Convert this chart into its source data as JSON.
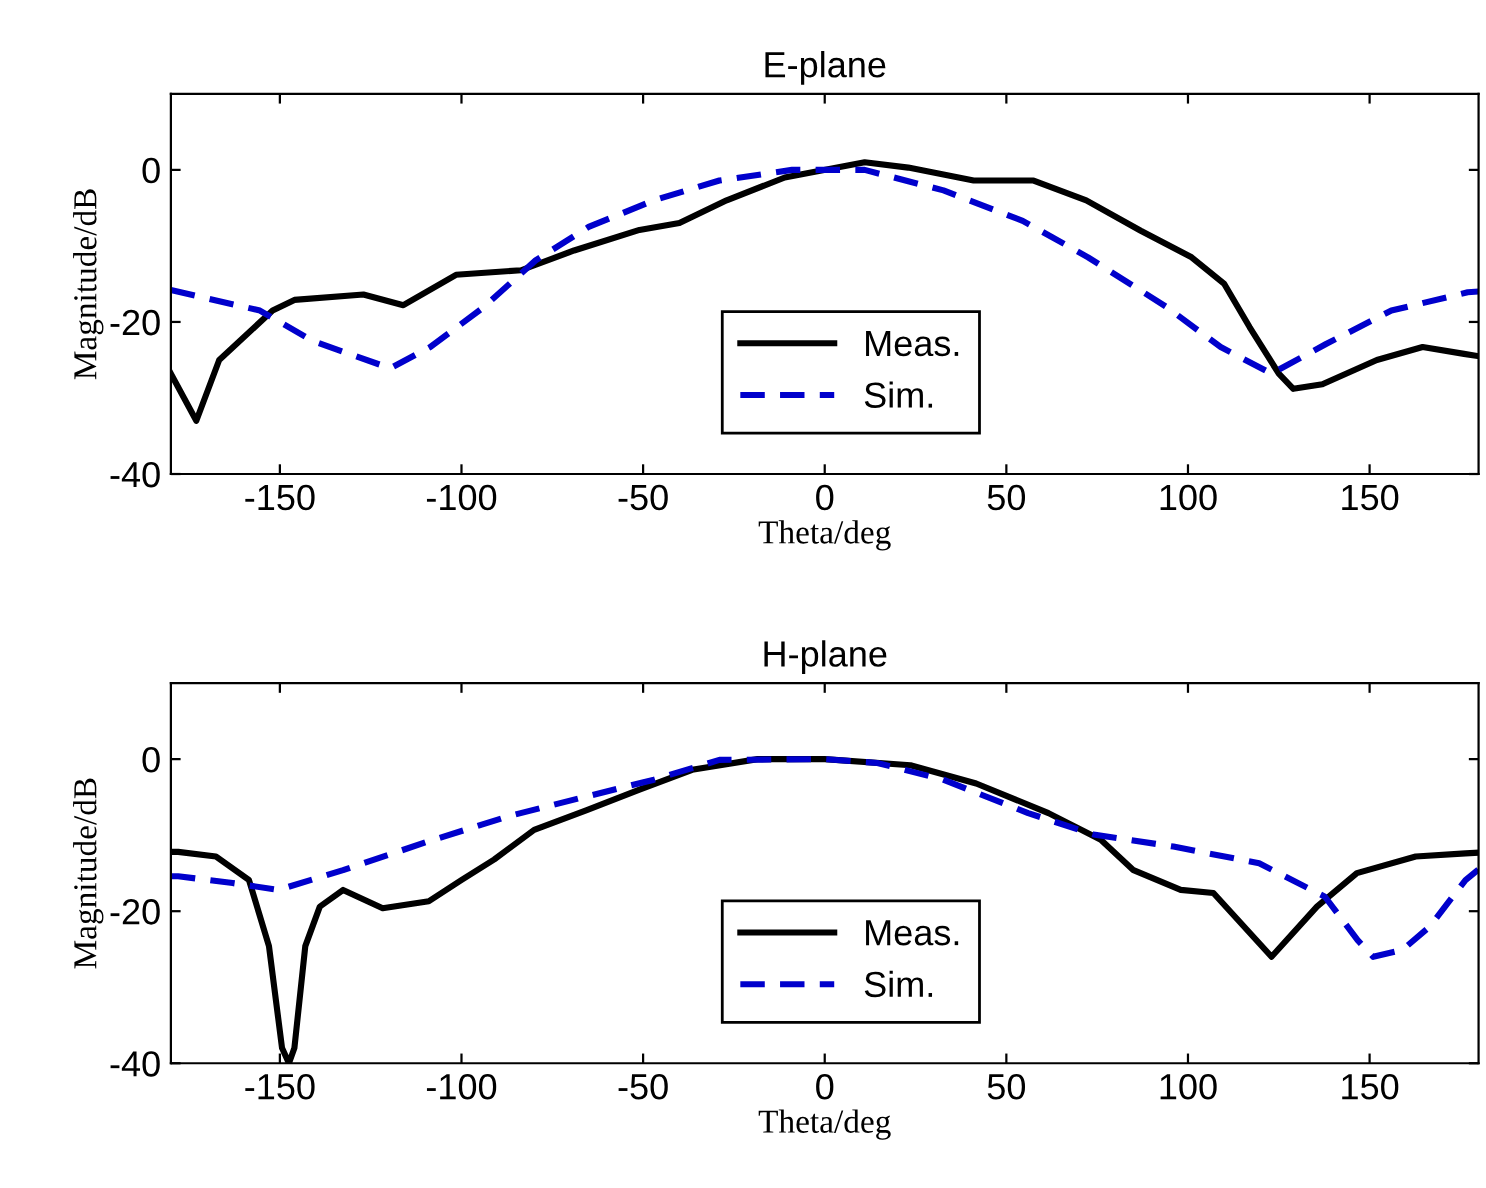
{
  "chart_data": [
    {
      "type": "line",
      "title": "E-plane",
      "xlabel": "Theta/deg",
      "ylabel": "Magnitude/dB",
      "xlim": [
        -180,
        180
      ],
      "ylim": [
        -40,
        10
      ],
      "xticks": [
        -150,
        -100,
        -50,
        0,
        50,
        100,
        150
      ],
      "yticks": [
        -40,
        -20,
        0
      ],
      "grid": false,
      "legend": "bottom",
      "marker": "none",
      "series": [
        {
          "name": "Meas.",
          "color": "#000000",
          "line_style": "solid",
          "x": [
            -180,
            -173,
            -166.7,
            -152,
            -146,
            -127,
            -116,
            -101.5,
            -83.6,
            -69,
            -51,
            -40,
            -27,
            -11,
            11,
            23,
            41,
            57.5,
            72,
            87,
            101,
            110,
            117,
            125,
            129,
            137,
            152,
            164.6,
            176,
            180
          ],
          "values": [
            -26.8,
            -33,
            -25,
            -18.5,
            -17.1,
            -16.4,
            -17.8,
            -13.8,
            -13.2,
            -10.6,
            -7.9,
            -7.0,
            -4.0,
            -1,
            1.0,
            0.3,
            -1.4,
            -1.4,
            -4.0,
            -8.0,
            -11.5,
            -15,
            -20.7,
            -26.8,
            -28.8,
            -28.2,
            -25,
            -23.3,
            -24.2,
            -24.5
          ]
        },
        {
          "name": "Sim.",
          "color": "#0000cc",
          "line_style": "dashed",
          "x": [
            -180,
            -155.5,
            -141,
            -119.6,
            -108.6,
            -94,
            -79.6,
            -65,
            -47,
            -29,
            -9,
            11,
            32.7,
            54.5,
            72.5,
            94,
            109,
            123,
            138,
            156,
            177,
            180
          ],
          "values": [
            -15.8,
            -18.5,
            -22.5,
            -26.1,
            -23.3,
            -18.1,
            -11.9,
            -7.5,
            -4.0,
            -1.4,
            0,
            0,
            -2.7,
            -6.7,
            -11.5,
            -18,
            -23.3,
            -26.8,
            -22.9,
            -18.5,
            -16.1,
            -16
          ]
        }
      ]
    },
    {
      "type": "line",
      "title": "H-plane",
      "xlabel": "Theta/deg",
      "ylabel": "Magnitude/dB",
      "xlim": [
        -180,
        180
      ],
      "ylim": [
        -40,
        10
      ],
      "xticks": [
        -150,
        -100,
        -50,
        0,
        50,
        100,
        150
      ],
      "yticks": [
        -40,
        -20,
        0
      ],
      "grid": false,
      "legend": "bottom",
      "marker": "none",
      "series": [
        {
          "name": "Meas.",
          "color": "#000000",
          "line_style": "solid",
          "x": [
            -180,
            -178,
            -167.6,
            -158.5,
            -153,
            -149.4,
            -147.5,
            -146,
            -143,
            -139,
            -132.6,
            -121.7,
            -109,
            -100,
            -91,
            -80,
            -65.5,
            -51,
            -36.5,
            -18.5,
            0,
            23.6,
            41.7,
            61.6,
            76,
            85,
            98,
            107,
            123,
            135.5,
            146.5,
            162.7,
            176.4,
            180
          ],
          "values": [
            -12.2,
            -12.2,
            -12.8,
            -15.9,
            -24.6,
            -38,
            -40,
            -38,
            -24.6,
            -19.4,
            -17.2,
            -19.6,
            -18.7,
            -15.9,
            -13.2,
            -9.3,
            -6.7,
            -4.0,
            -1.4,
            0,
            0,
            -0.8,
            -3.2,
            -7.1,
            -10.6,
            -14.6,
            -17.2,
            -17.6,
            -26,
            -19.4,
            -15,
            -12.8,
            -12.4,
            -12.3
          ]
        },
        {
          "name": "Sim.",
          "color": "#0000cc",
          "line_style": "dashed",
          "x": [
            -180,
            -178,
            -163,
            -150.4,
            -132.6,
            -109,
            -87,
            -65.5,
            -47,
            -29,
            0,
            14.5,
            32.6,
            56,
            74,
            96,
            119.6,
            137.7,
            146.7,
            151,
            159,
            166.6,
            176.4,
            180
          ],
          "values": [
            -15.4,
            -15.4,
            -16.3,
            -17.2,
            -14.6,
            -10.8,
            -7.5,
            -4.9,
            -2.7,
            -0.1,
            0,
            -0.5,
            -2.7,
            -7.1,
            -9.9,
            -11.5,
            -13.7,
            -18.1,
            -23.8,
            -26,
            -25.1,
            -22,
            -15.9,
            -14.5
          ]
        }
      ]
    }
  ]
}
